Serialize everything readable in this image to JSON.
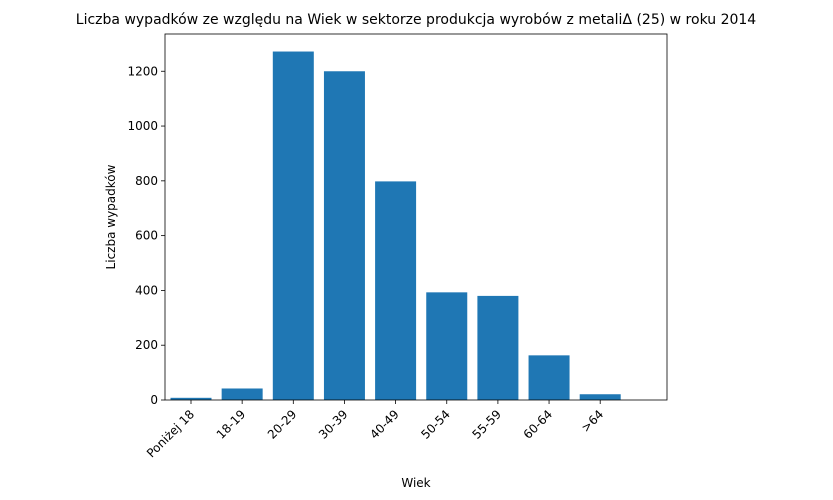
{
  "chart_data": {
    "type": "bar",
    "title": "Liczba wypadków ze względu na Wiek w sektorze produkcja wyrobów z metaliΔ (25) w roku 2014",
    "xlabel": "Wiek",
    "ylabel": "Liczba wypadków",
    "categories": [
      "Poniżej 18",
      "18-19",
      "20-29",
      "30-39",
      "40-49",
      "50-54",
      "55-59",
      "60-64",
      ">64"
    ],
    "values": [
      8,
      42,
      1272,
      1200,
      798,
      393,
      380,
      163,
      21
    ],
    "ylim": [
      0,
      1336
    ],
    "yticks": [
      0,
      200,
      400,
      600,
      800,
      1000,
      1200
    ],
    "bar_color": "#1f77b4",
    "grid": false,
    "legend": "none"
  }
}
